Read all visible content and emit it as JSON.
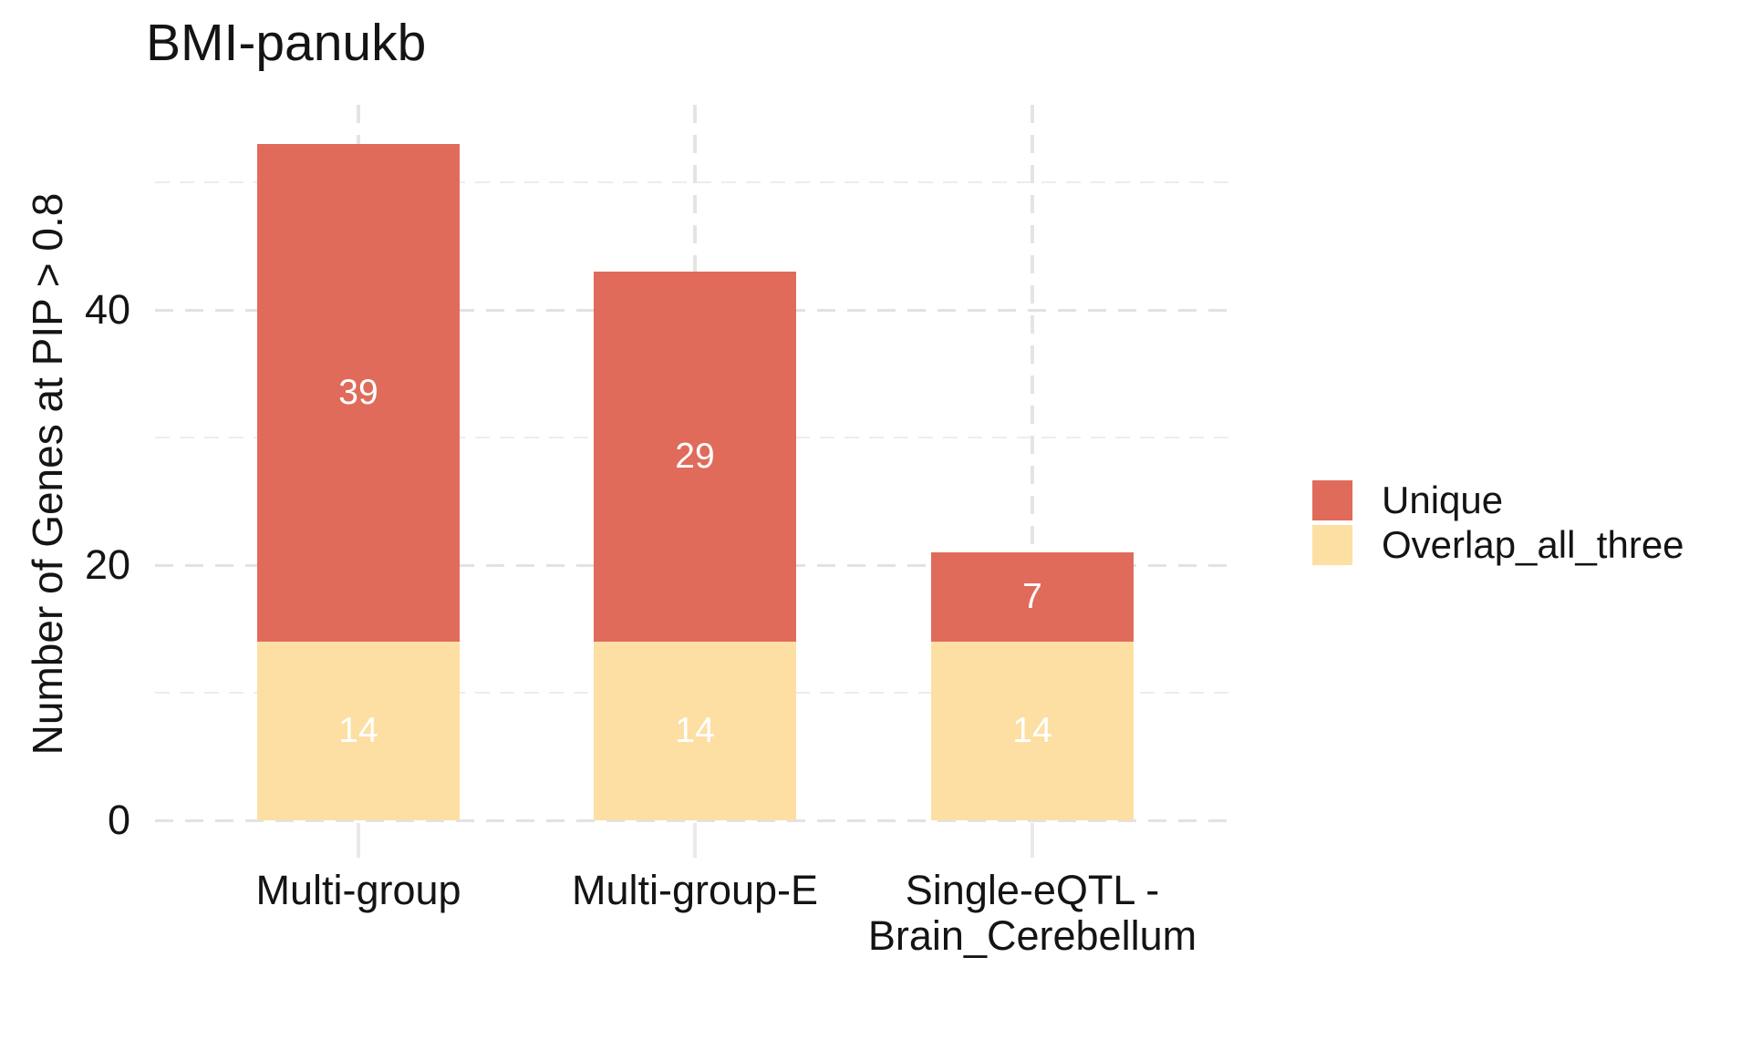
{
  "figure": {
    "title": "BMI-panukb"
  },
  "chart_data": {
    "type": "bar",
    "stacked": true,
    "title": "BMI-panukb",
    "xlabel": "",
    "ylabel": "Number of Genes at PIP > 0.8",
    "categories": [
      "Multi-group",
      "Multi-group-E",
      "Single-eQTL -\nBrain_Cerebellum"
    ],
    "series": [
      {
        "name": "Overlap_all_three",
        "color": "#FDDFA3",
        "values": [
          14,
          14,
          14
        ]
      },
      {
        "name": "Unique",
        "color": "#E06B5B",
        "values": [
          39,
          29,
          7
        ]
      }
    ],
    "totals": [
      53,
      43,
      21
    ],
    "bar_value_labels": true,
    "bar_label_color": "#FFFFFF",
    "ylim": [
      0,
      56
    ],
    "y_major_ticks": [
      0,
      20,
      40
    ],
    "y_minor_ticks": [
      10,
      30,
      50
    ],
    "grid": "dashed",
    "background": "#FFFFFF",
    "legend": {
      "position": "right",
      "entries": [
        {
          "label": "Unique",
          "color": "#E06B5B"
        },
        {
          "label": "Overlap_all_three",
          "color": "#FDDFA3"
        }
      ]
    }
  }
}
